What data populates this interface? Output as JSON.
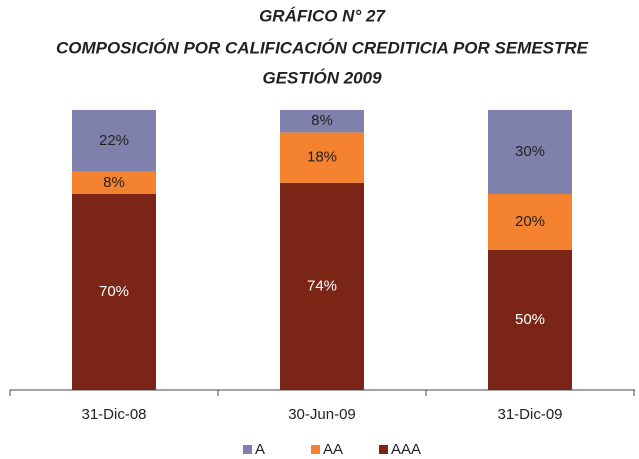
{
  "chart_data": {
    "type": "stacked_bar",
    "title": [
      "GRÁFICO N° 27",
      "COMPOSICIÓN POR CALIFICACIÓN CREDITICIA POR SEMESTRE",
      "GESTIÓN 2009"
    ],
    "categories": [
      "31-Dic-08",
      "30-Jun-09",
      "31-Dic-09"
    ],
    "series": [
      {
        "name": "A",
        "color": "#8080ac",
        "values": [
          22,
          8,
          30
        ],
        "value_labels": [
          "22%",
          "8%",
          "30%"
        ]
      },
      {
        "name": "AA",
        "color": "#f5822f",
        "values": [
          8,
          18,
          20
        ],
        "value_labels": [
          "8%",
          "18%",
          "20%"
        ]
      },
      {
        "name": "AAA",
        "color": "#7a2516",
        "values": [
          70,
          74,
          50
        ],
        "value_labels": [
          "70%",
          "74%",
          "50%"
        ]
      }
    ],
    "ylim": [
      0,
      100
    ]
  }
}
